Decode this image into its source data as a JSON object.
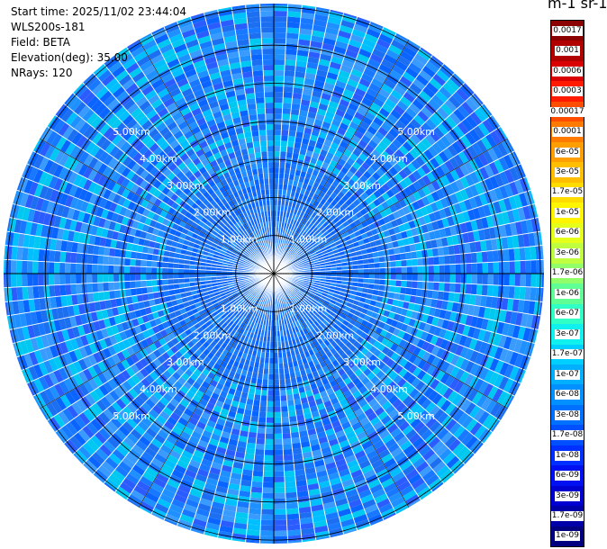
{
  "info": {
    "start_time": "Start time: 2025/11/02 23:44:04",
    "instrument": "WLS200s-181",
    "field": "Field: BETA",
    "elevation": "Elevation(deg): 35.00",
    "nrays": "NRays: 120"
  },
  "units_label": "m-1 sr-1",
  "colorbar": {
    "labels": [
      "0.0017",
      "0.001",
      "0.0006",
      "0.0003",
      "0.00017",
      "0.0001",
      "6e-05",
      "3e-05",
      "1.7e-05",
      "1e-05",
      "6e-06",
      "3e-06",
      "1.7e-06",
      "1e-06",
      "6e-07",
      "3e-07",
      "1.7e-07",
      "1e-07",
      "6e-08",
      "3e-08",
      "1.7e-08",
      "1e-08",
      "6e-09",
      "3e-09",
      "1.7e-09",
      "1e-09"
    ],
    "colors": [
      "#8b0000",
      "#b00000",
      "#d80000",
      "#ff1a00",
      "#ff4d00",
      "#ff7a00",
      "#ff9e00",
      "#ffbe00",
      "#ffdc00",
      "#fff500",
      "#e6ff1a",
      "#c0ff40",
      "#90ff6a",
      "#60ff96",
      "#30ffc6",
      "#10f0ee",
      "#00d0ff",
      "#00b0ff",
      "#0090ff",
      "#0070ff",
      "#0050ff",
      "#0030ff",
      "#0010f0",
      "#0000d0",
      "#0000a8",
      "#000080"
    ]
  },
  "range_rings": {
    "labels": [
      "1.00km",
      "2.00km",
      "3.00km",
      "4.00km",
      "5.00km"
    ]
  },
  "scan": {
    "nrays": 120,
    "palette": [
      "#1e90ff",
      "#00bfff",
      "#1c6ff0",
      "#3a9bff",
      "#0a64ff",
      "#00c8f0",
      "#1878ff",
      "#2a5cff"
    ]
  }
}
